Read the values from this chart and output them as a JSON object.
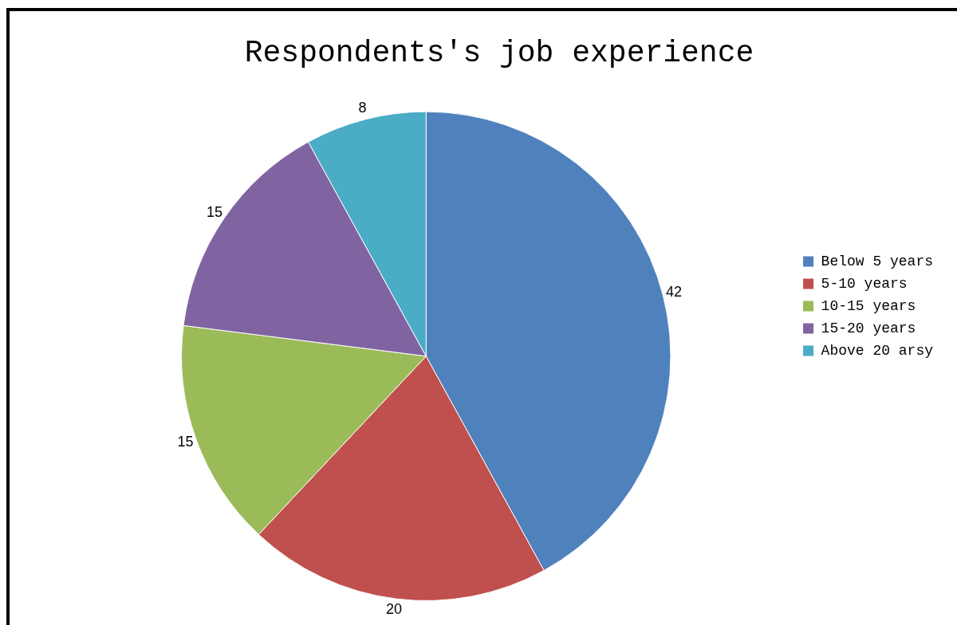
{
  "chart_data": {
    "type": "pie",
    "title": "Respondents's job experience",
    "categories": [
      "Below 5 years",
      "5-10 years",
      "10-15 years",
      "15-20 years",
      "Above 20 arsy"
    ],
    "values": [
      42,
      20,
      15,
      15,
      8
    ],
    "colors": [
      "#4f81bd",
      "#c0504d",
      "#9bbb59",
      "#8064a2",
      "#4bacc6"
    ],
    "data_labels": true,
    "legend": "right"
  }
}
